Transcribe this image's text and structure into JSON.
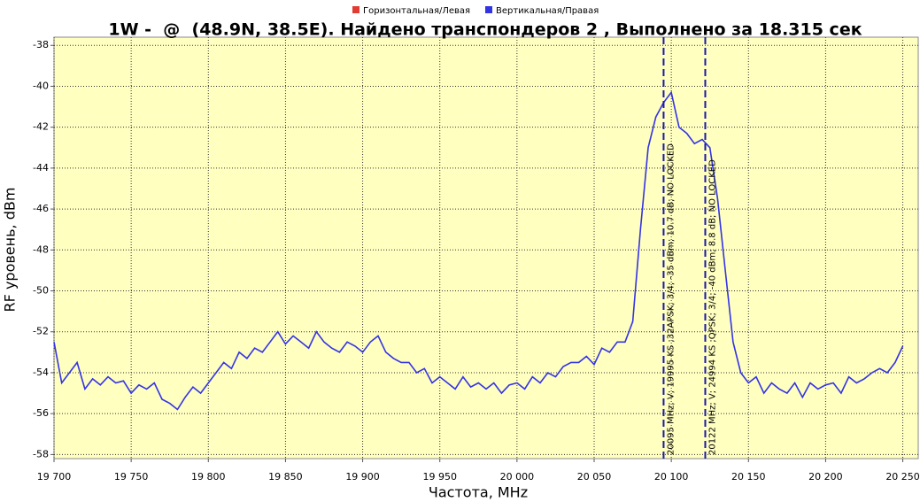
{
  "chart_data": {
    "type": "line",
    "title": "1W -  @  (48.9N, 38.5E). Найдено транспондеров 2 , Выполнено за 18.315 сек",
    "x_label": "Частота, MHz",
    "y_label": "RF уровень, dBm",
    "x": [
      19700,
      19705,
      19710,
      19715,
      19720,
      19725,
      19730,
      19735,
      19740,
      19745,
      19750,
      19755,
      19760,
      19765,
      19770,
      19775,
      19780,
      19785,
      19790,
      19795,
      19800,
      19805,
      19810,
      19815,
      19820,
      19825,
      19830,
      19835,
      19840,
      19845,
      19850,
      19855,
      19860,
      19865,
      19870,
      19875,
      19880,
      19885,
      19890,
      19895,
      19900,
      19905,
      19910,
      19915,
      19920,
      19925,
      19930,
      19935,
      19940,
      19945,
      19950,
      19955,
      19960,
      19965,
      19970,
      19975,
      19980,
      19985,
      19990,
      19995,
      20000,
      20005,
      20010,
      20015,
      20020,
      20025,
      20030,
      20035,
      20040,
      20045,
      20050,
      20055,
      20060,
      20065,
      20070,
      20075,
      20080,
      20085,
      20090,
      20095,
      20100,
      20105,
      20110,
      20115,
      20120,
      20125,
      20130,
      20135,
      20140,
      20145,
      20150,
      20155,
      20160,
      20165,
      20170,
      20175,
      20180,
      20185,
      20190,
      20195,
      20200,
      20205,
      20210,
      20215,
      20220,
      20225,
      20230,
      20235,
      20240,
      20245,
      20250
    ],
    "series": [
      {
        "name": "Горизонтальная/Левая",
        "color": "#e03c31",
        "values": [
          null,
          null,
          null,
          null,
          null,
          null,
          null,
          null,
          null,
          null,
          null,
          null,
          null,
          null,
          null,
          null,
          null,
          null,
          null,
          null,
          null,
          null,
          null,
          null,
          null,
          null,
          null,
          null,
          null,
          null,
          null,
          null,
          null,
          null,
          null,
          null,
          null,
          null,
          null,
          null,
          null,
          null,
          null,
          null,
          null,
          null,
          null,
          null,
          null,
          null,
          null,
          null,
          null,
          null,
          null,
          null,
          null,
          null,
          null,
          null,
          null,
          null,
          null,
          null,
          null,
          null,
          null,
          null,
          null,
          null,
          null,
          null,
          null,
          null,
          null,
          null,
          null,
          null,
          null,
          null,
          null,
          null,
          null,
          null,
          null,
          null,
          null,
          null,
          null,
          null,
          null,
          null,
          null,
          null,
          null,
          null,
          null,
          null,
          null,
          null,
          null,
          null,
          null,
          null,
          null,
          null,
          null,
          null,
          null,
          null,
          null
        ]
      },
      {
        "name": "Вертикальная/Правая",
        "color": "#3333e6",
        "values": [
          -52.5,
          -54.5,
          -54,
          -53.5,
          -54.8,
          -54.3,
          -54.6,
          -54.2,
          -54.5,
          -54.4,
          -55,
          -54.6,
          -54.8,
          -54.5,
          -55.3,
          -55.5,
          -55.8,
          -55.2,
          -54.7,
          -55,
          -54.5,
          -54,
          -53.5,
          -53.8,
          -53,
          -53.3,
          -52.8,
          -53,
          -52.5,
          -52,
          -52.6,
          -52.2,
          -52.5,
          -52.8,
          -52,
          -52.5,
          -52.8,
          -53,
          -52.5,
          -52.7,
          -53,
          -52.5,
          -52.2,
          -53,
          -53.3,
          -53.5,
          -53.5,
          -54,
          -53.8,
          -54.5,
          -54.2,
          -54.5,
          -54.8,
          -54.2,
          -54.7,
          -54.5,
          -54.8,
          -54.5,
          -55,
          -54.6,
          -54.5,
          -54.8,
          -54.2,
          -54.5,
          -54,
          -54.2,
          -53.7,
          -53.5,
          -53.5,
          -53.2,
          -53.6,
          -52.8,
          -53,
          -52.5,
          -52.5,
          -51.5,
          -47,
          -43,
          -41.5,
          -40.8,
          -40.3,
          -42,
          -42.3,
          -42.8,
          -42.6,
          -43,
          -45.5,
          -49,
          -52.5,
          -54,
          -54.5,
          -54.2,
          -55,
          -54.5,
          -54.8,
          -55,
          -54.5,
          -55.2,
          -54.5,
          -54.8,
          -54.6,
          -54.5,
          -55,
          -54.2,
          -54.5,
          -54.3,
          -54,
          -53.8,
          -54,
          -53.5,
          -52.7
        ]
      }
    ],
    "markers": [
      {
        "x": 20095,
        "label": "20095 MHz; V; 19995 KS ;32APSK; 3/4; -35 dBm; 10.7 dB; NO LOCKED"
      },
      {
        "x": 20122,
        "label": "20122 MHz; V; 24994 KS ;QPSK; 3/4; -40 dBm; 8.8 dB; NO LOCKED"
      }
    ],
    "xlim": [
      19700,
      20260
    ],
    "ylim": [
      -58.2,
      -37.6
    ],
    "xticks": [
      {
        "value": 19700,
        "label": "19 700"
      },
      {
        "value": 19750,
        "label": "19 750"
      },
      {
        "value": 19800,
        "label": "19 800"
      },
      {
        "value": 19850,
        "label": "19 850"
      },
      {
        "value": 19900,
        "label": "19 900"
      },
      {
        "value": 19950,
        "label": "19 950"
      },
      {
        "value": 20000,
        "label": "20 000"
      },
      {
        "value": 20050,
        "label": "20 050"
      },
      {
        "value": 20100,
        "label": "20 100"
      },
      {
        "value": 20150,
        "label": "20 150"
      },
      {
        "value": 20200,
        "label": "20 200"
      },
      {
        "value": 20250,
        "label": "20 250"
      }
    ],
    "yticks": [
      -58,
      -56,
      -54,
      -52,
      -50,
      -48,
      -46,
      -44,
      -42,
      -40,
      -38
    ],
    "grid": true,
    "legend": "top"
  }
}
